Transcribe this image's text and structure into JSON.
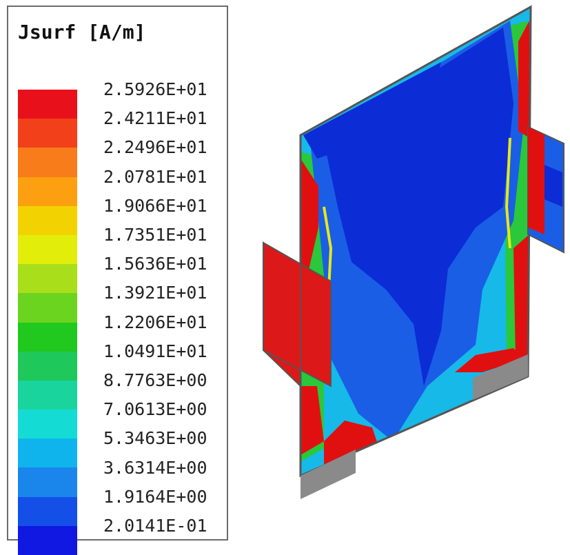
{
  "legend": {
    "title": "Jsurf [A/m]",
    "ticks": [
      "2.5926E+01",
      "2.4211E+01",
      "2.2496E+01",
      "2.0781E+01",
      "1.9066E+01",
      "1.7351E+01",
      "1.5636E+01",
      "1.3921E+01",
      "1.2206E+01",
      "1.0491E+01",
      "8.7763E+00",
      "7.0613E+00",
      "5.3463E+00",
      "3.6314E+00",
      "1.9164E+00",
      "2.0141E-01"
    ],
    "colors": [
      "#e8101a",
      "#f2401a",
      "#f87c1a",
      "#fca012",
      "#f2d200",
      "#e2ee0a",
      "#a9de1a",
      "#6ad41e",
      "#21c81e",
      "#1ec85a",
      "#1ad49e",
      "#14dcd4",
      "#10b4ec",
      "#1a86ec",
      "#1450e8",
      "#1018e2"
    ]
  },
  "model": {
    "colors": {
      "red": "#e01010",
      "port_red": "#dd1818",
      "deep_blue": "#0c2cd6",
      "mid_blue": "#1a5ee6",
      "cyan": "#17b9e8",
      "green": "#2ac83a",
      "yellow": "#e6e81a",
      "gray": "#8a8a8a",
      "edge": "#555555"
    }
  }
}
